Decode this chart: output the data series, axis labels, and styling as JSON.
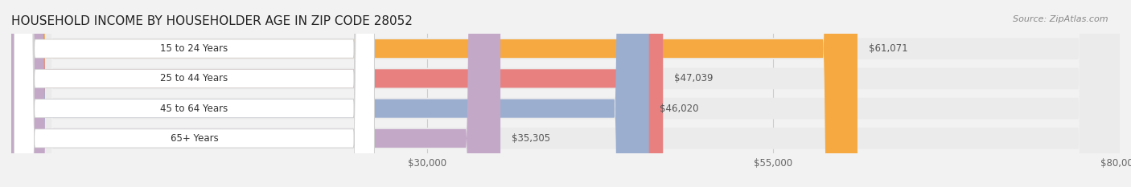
{
  "title": "HOUSEHOLD INCOME BY HOUSEHOLDER AGE IN ZIP CODE 28052",
  "source": "Source: ZipAtlas.com",
  "categories": [
    "15 to 24 Years",
    "25 to 44 Years",
    "45 to 64 Years",
    "65+ Years"
  ],
  "values": [
    61071,
    47039,
    46020,
    35305
  ],
  "bar_colors": [
    "#F5A940",
    "#E88080",
    "#9BAED0",
    "#C4A8C8"
  ],
  "track_color": "#EBEBEB",
  "bg_color": "#F2F2F2",
  "label_box_color": "#FFFFFF",
  "xmin": 0,
  "xmax": 80000,
  "xticks": [
    30000,
    55000,
    80000
  ],
  "xtick_labels": [
    "$30,000",
    "$55,000",
    "$80,000"
  ],
  "title_fontsize": 11,
  "source_fontsize": 8,
  "bar_label_fontsize": 8.5,
  "value_fontsize": 8.5,
  "tick_fontsize": 8.5
}
